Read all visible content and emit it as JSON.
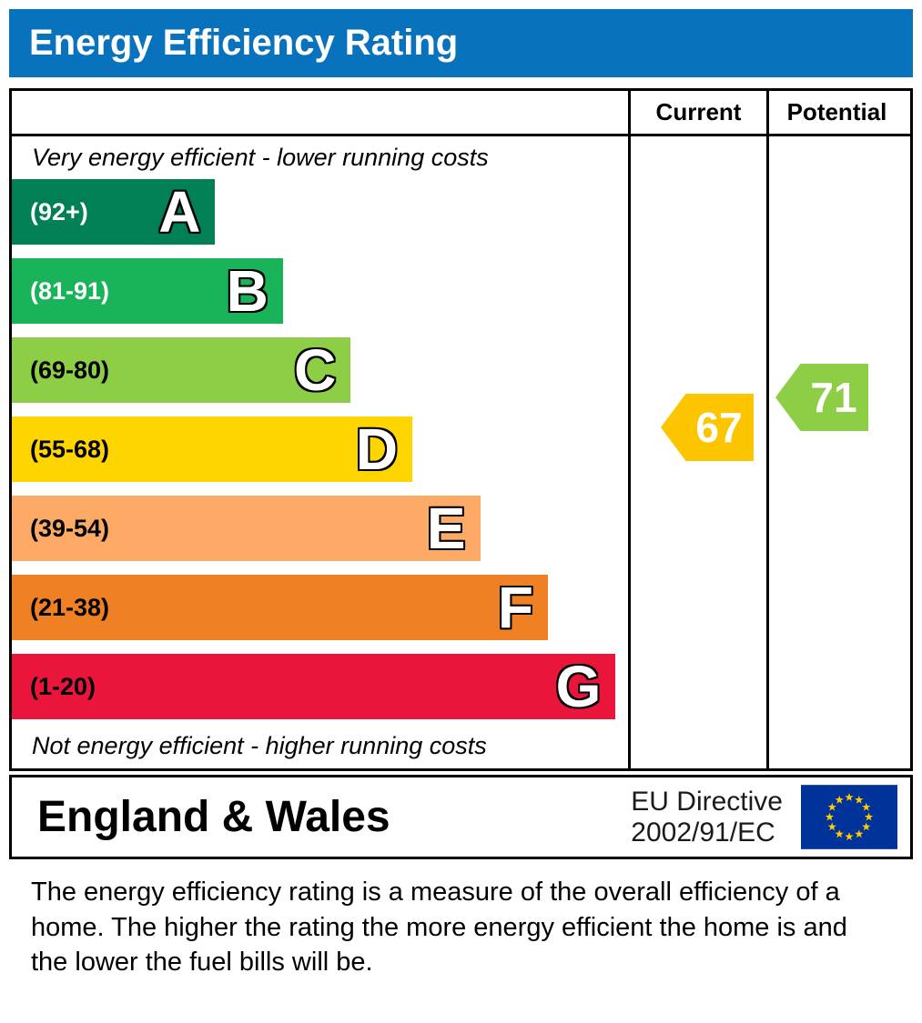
{
  "title": "Energy Efficiency Rating",
  "table": {
    "col_current": "Current",
    "col_potential": "Potential",
    "top_note": "Very energy efficient - lower running costs",
    "bottom_note": "Not energy efficient - higher running costs"
  },
  "bands": [
    {
      "letter": "A",
      "range": "(92+)",
      "color": "#008054",
      "label_color": "#ffffff",
      "width_pct": 33
    },
    {
      "letter": "B",
      "range": "(81-91)",
      "color": "#19b459",
      "label_color": "#ffffff",
      "width_pct": 44
    },
    {
      "letter": "C",
      "range": "(69-80)",
      "color": "#8dce46",
      "label_color": "#000000",
      "width_pct": 55
    },
    {
      "letter": "D",
      "range": "(55-68)",
      "color": "#ffd500",
      "label_color": "#000000",
      "width_pct": 65
    },
    {
      "letter": "E",
      "range": "(39-54)",
      "color": "#fcaa65",
      "label_color": "#000000",
      "width_pct": 76
    },
    {
      "letter": "F",
      "range": "(21-38)",
      "color": "#ef8023",
      "label_color": "#000000",
      "width_pct": 87
    },
    {
      "letter": "G",
      "range": "(1-20)",
      "color": "#e9153b",
      "label_color": "#000000",
      "width_pct": 98
    }
  ],
  "current": {
    "label": "Current",
    "value": "67",
    "band": "D",
    "color": "#fdc400"
  },
  "potential": {
    "label": "Potential",
    "value": "71",
    "band": "C",
    "color": "#8dce46"
  },
  "footer": {
    "region": "England & Wales",
    "directive_line1": "EU Directive",
    "directive_line2": "2002/91/EC"
  },
  "description": "The energy efficiency rating is a measure of the overall efficiency of a home.  The higher the rating the more energy efficient the home is and the lower the fuel bills will be.",
  "colors": {
    "banner_bg": "#0872bc",
    "banner_text": "#ffffff",
    "border": "#000000",
    "eu_flag_bg": "#003399",
    "eu_star": "#ffcc00"
  },
  "chart_data": {
    "type": "bar",
    "title": "Energy Efficiency Rating",
    "orientation": "horizontal",
    "categories": [
      "A",
      "B",
      "C",
      "D",
      "E",
      "F",
      "G"
    ],
    "band_ranges": [
      "92+",
      "81-91",
      "69-80",
      "55-68",
      "39-54",
      "21-38",
      "1-20"
    ],
    "bar_lengths_pct": [
      33,
      44,
      55,
      65,
      76,
      87,
      98
    ],
    "bar_colors": [
      "#008054",
      "#19b459",
      "#8dce46",
      "#ffd500",
      "#fcaa65",
      "#ef8023",
      "#e9153b"
    ],
    "value_scale": [
      1,
      100
    ],
    "markers": [
      {
        "name": "Current",
        "value": 67,
        "band": "D",
        "color": "#fdc400"
      },
      {
        "name": "Potential",
        "value": 71,
        "band": "C",
        "color": "#8dce46"
      }
    ],
    "annotations": [
      "Very energy efficient - lower running costs",
      "Not energy efficient - higher running costs"
    ],
    "legend_position": "none",
    "grid": false
  }
}
